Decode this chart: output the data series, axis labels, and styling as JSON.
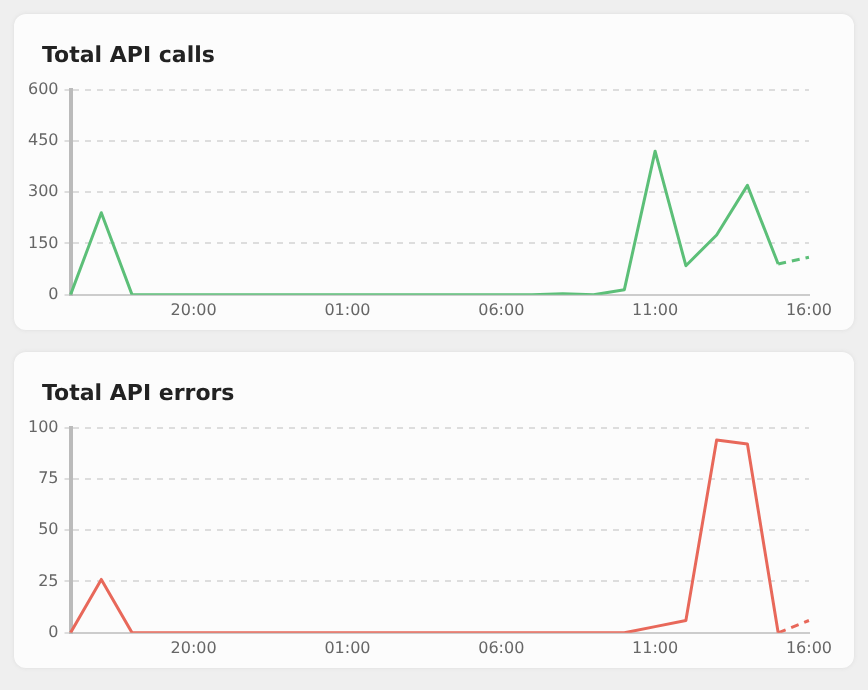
{
  "chart_data": [
    {
      "type": "line",
      "title": "Total API calls",
      "categories": [
        null,
        null,
        null,
        null,
        "20:00",
        null,
        null,
        null,
        null,
        "01:00",
        null,
        null,
        null,
        null,
        "06:00",
        null,
        null,
        null,
        null,
        "11:00",
        null,
        null,
        null,
        null,
        "16:00"
      ],
      "ylim": [
        0,
        600
      ],
      "yticks": [
        0,
        150,
        300,
        450,
        600
      ],
      "grid": "y",
      "marker": "none",
      "series": [
        {
          "color": "#5cbf78",
          "line_style": "solid",
          "values": [
            0,
            240,
            0,
            0,
            0,
            0,
            0,
            0,
            0,
            0,
            0,
            0,
            0,
            0,
            0,
            0,
            3,
            0,
            15,
            420,
            85,
            175,
            320,
            90,
            null
          ]
        },
        {
          "color": "#5cbf78",
          "line_style": "dashed",
          "values": [
            null,
            null,
            null,
            null,
            null,
            null,
            null,
            null,
            null,
            null,
            null,
            null,
            null,
            null,
            null,
            null,
            null,
            null,
            null,
            null,
            null,
            null,
            null,
            90,
            110
          ]
        }
      ]
    },
    {
      "type": "line",
      "title": "Total API errors",
      "categories": [
        null,
        null,
        null,
        null,
        "20:00",
        null,
        null,
        null,
        null,
        "01:00",
        null,
        null,
        null,
        null,
        "06:00",
        null,
        null,
        null,
        null,
        "11:00",
        null,
        null,
        null,
        null,
        "16:00"
      ],
      "ylim": [
        0,
        100
      ],
      "yticks": [
        0,
        25,
        50,
        75,
        100
      ],
      "grid": "y",
      "marker": "none",
      "series": [
        {
          "color": "#e8685a",
          "line_style": "solid",
          "values": [
            0,
            26,
            0,
            0,
            0,
            0,
            0,
            0,
            0,
            0,
            0,
            0,
            0,
            0,
            0,
            0,
            0,
            0,
            0,
            3,
            6,
            94,
            92,
            0,
            null
          ]
        },
        {
          "color": "#e8685a",
          "line_style": "dashed",
          "values": [
            null,
            null,
            null,
            null,
            null,
            null,
            null,
            null,
            null,
            null,
            null,
            null,
            null,
            null,
            null,
            null,
            null,
            null,
            null,
            null,
            null,
            null,
            null,
            0,
            6
          ]
        }
      ]
    }
  ]
}
